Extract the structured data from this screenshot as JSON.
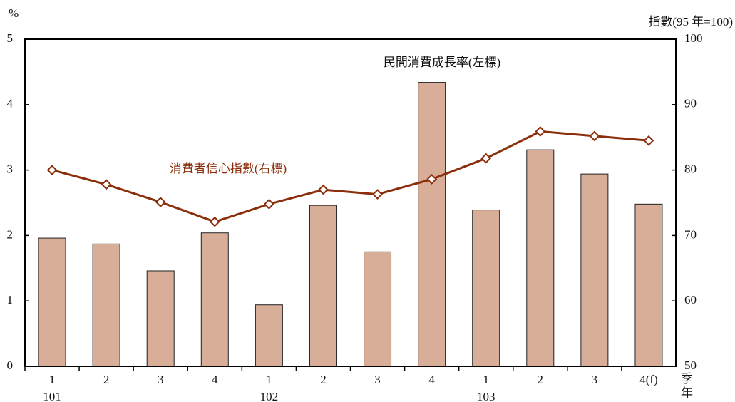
{
  "chart_data": {
    "type": "bar_line",
    "ylabel": "%",
    "y2label": "指數(95 年=100)",
    "xlabel": "季",
    "year_axis_label": "年",
    "categories": [
      "1",
      "2",
      "3",
      "4",
      "1",
      "2",
      "3",
      "4",
      "1",
      "2",
      "3",
      "4(f)"
    ],
    "year_labels": [
      "101",
      null,
      null,
      null,
      "102",
      null,
      null,
      null,
      "103",
      null,
      null,
      null
    ],
    "series": [
      {
        "name": "民間消費成長率(左標)",
        "type": "bar",
        "color": "#d8ae98",
        "values": [
          1.96,
          1.87,
          1.46,
          2.04,
          0.94,
          2.46,
          1.75,
          4.34,
          2.39,
          3.31,
          2.94,
          2.48
        ]
      },
      {
        "name": "消費者信心指數(右標)",
        "type": "line",
        "axis": "y2",
        "color": "#8b2e0c",
        "values": [
          80.0,
          77.8,
          75.1,
          72.1,
          74.8,
          77.0,
          76.3,
          78.6,
          81.8,
          85.9,
          85.2,
          84.5
        ]
      }
    ],
    "ylim": [
      0,
      5
    ],
    "yticks": [
      0,
      1,
      2,
      3,
      4,
      5
    ],
    "y2lim": [
      50,
      100
    ],
    "y2ticks": [
      50,
      60,
      70,
      80,
      90,
      100
    ]
  }
}
